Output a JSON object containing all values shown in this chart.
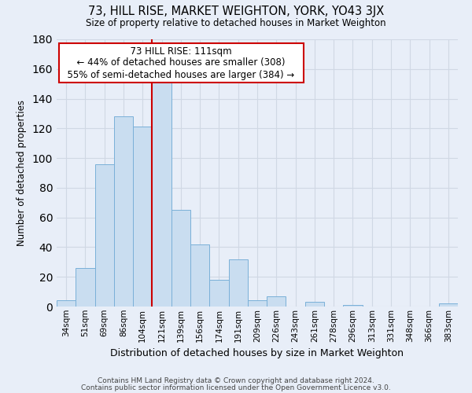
{
  "title": "73, HILL RISE, MARKET WEIGHTON, YORK, YO43 3JX",
  "subtitle": "Size of property relative to detached houses in Market Weighton",
  "xlabel": "Distribution of detached houses by size in Market Weighton",
  "ylabel": "Number of detached properties",
  "footer_line1": "Contains HM Land Registry data © Crown copyright and database right 2024.",
  "footer_line2": "Contains public sector information licensed under the Open Government Licence v3.0.",
  "bin_labels": [
    "34sqm",
    "51sqm",
    "69sqm",
    "86sqm",
    "104sqm",
    "121sqm",
    "139sqm",
    "156sqm",
    "174sqm",
    "191sqm",
    "209sqm",
    "226sqm",
    "243sqm",
    "261sqm",
    "278sqm",
    "296sqm",
    "313sqm",
    "331sqm",
    "348sqm",
    "366sqm",
    "383sqm"
  ],
  "bar_heights": [
    4,
    26,
    96,
    128,
    121,
    151,
    65,
    42,
    18,
    32,
    4,
    7,
    0,
    3,
    0,
    1,
    0,
    0,
    0,
    0,
    2
  ],
  "bar_color": "#c9ddf0",
  "bar_edge_color": "#7ab0d8",
  "grid_color": "#d0d8e4",
  "bg_color": "#e8eef8",
  "property_line_x": 4.5,
  "annotation_text_line1": "73 HILL RISE: 111sqm",
  "annotation_text_line2": "← 44% of detached houses are smaller (308)",
  "annotation_text_line3": "55% of semi-detached houses are larger (384) →",
  "annotation_box_color": "#ffffff",
  "annotation_box_edge": "#cc0000",
  "vline_color": "#cc0000",
  "ylim": [
    0,
    180
  ],
  "yticks": [
    0,
    20,
    40,
    60,
    80,
    100,
    120,
    140,
    160,
    180
  ]
}
